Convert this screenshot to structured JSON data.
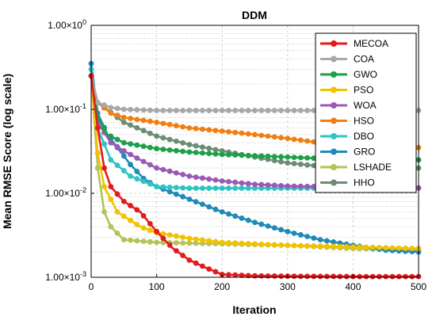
{
  "chart_data": {
    "type": "line",
    "title": "DDM",
    "xlabel": "Iteration",
    "ylabel": "Mean RMSE Score (log scale)",
    "x_ticks": [
      0,
      100,
      200,
      300,
      400,
      500
    ],
    "y_ticks": [
      {
        "value": 0.001,
        "mantissa": "1.00×10",
        "exp": "-3"
      },
      {
        "value": 0.01,
        "mantissa": "1.00×10",
        "exp": "-2"
      },
      {
        "value": 0.1,
        "mantissa": "1.00×10",
        "exp": "-1"
      },
      {
        "value": 1,
        "mantissa": "1.00×10",
        "exp": "0"
      }
    ],
    "xlim": [
      0,
      500
    ],
    "ylim": [
      0.001,
      1
    ],
    "y_scale": "log",
    "grid": true,
    "legend_position": "top-right",
    "series": [
      {
        "name": "MECOA",
        "color": "#e41a1c",
        "points": [
          [
            0,
            0.25
          ],
          [
            10,
            0.06
          ],
          [
            20,
            0.02
          ],
          [
            30,
            0.012
          ],
          [
            50,
            0.008
          ],
          [
            75,
            0.006
          ],
          [
            100,
            0.0035
          ],
          [
            125,
            0.0022
          ],
          [
            150,
            0.0016
          ],
          [
            175,
            0.0013
          ],
          [
            200,
            0.00108
          ],
          [
            250,
            0.00104
          ],
          [
            300,
            0.00103
          ],
          [
            400,
            0.00102
          ],
          [
            500,
            0.00102
          ]
        ]
      },
      {
        "name": "COA",
        "color": "#a8a8a8",
        "points": [
          [
            0,
            0.25
          ],
          [
            10,
            0.12
          ],
          [
            30,
            0.105
          ],
          [
            50,
            0.1
          ],
          [
            100,
            0.097
          ],
          [
            200,
            0.097
          ],
          [
            300,
            0.097
          ],
          [
            400,
            0.097
          ],
          [
            500,
            0.097
          ]
        ]
      },
      {
        "name": "GWO",
        "color": "#1ca04a",
        "points": [
          [
            0,
            0.25
          ],
          [
            10,
            0.08
          ],
          [
            25,
            0.05
          ],
          [
            50,
            0.04
          ],
          [
            100,
            0.034
          ],
          [
            150,
            0.031
          ],
          [
            200,
            0.029
          ],
          [
            250,
            0.028
          ],
          [
            300,
            0.027
          ],
          [
            350,
            0.026
          ],
          [
            400,
            0.025
          ],
          [
            450,
            0.025
          ],
          [
            500,
            0.025
          ]
        ]
      },
      {
        "name": "PSO",
        "color": "#f2c200",
        "points": [
          [
            0,
            0.25
          ],
          [
            10,
            0.03
          ],
          [
            20,
            0.012
          ],
          [
            40,
            0.006
          ],
          [
            75,
            0.004
          ],
          [
            100,
            0.0034
          ],
          [
            150,
            0.0029
          ],
          [
            200,
            0.0026
          ],
          [
            300,
            0.0024
          ],
          [
            400,
            0.0023
          ],
          [
            500,
            0.0022
          ]
        ]
      },
      {
        "name": "WOA",
        "color": "#9b59b6",
        "points": [
          [
            0,
            0.25
          ],
          [
            10,
            0.07
          ],
          [
            30,
            0.04
          ],
          [
            50,
            0.032
          ],
          [
            75,
            0.025
          ],
          [
            100,
            0.02
          ],
          [
            150,
            0.016
          ],
          [
            200,
            0.014
          ],
          [
            250,
            0.0128
          ],
          [
            300,
            0.0122
          ],
          [
            350,
            0.012
          ],
          [
            400,
            0.0118
          ],
          [
            500,
            0.0116
          ]
        ]
      },
      {
        "name": "HSO",
        "color": "#f07f13",
        "points": [
          [
            0,
            0.25
          ],
          [
            10,
            0.12
          ],
          [
            30,
            0.09
          ],
          [
            50,
            0.08
          ],
          [
            100,
            0.07
          ],
          [
            150,
            0.06
          ],
          [
            200,
            0.055
          ],
          [
            250,
            0.05
          ],
          [
            300,
            0.045
          ],
          [
            350,
            0.04
          ],
          [
            400,
            0.038
          ],
          [
            450,
            0.036
          ],
          [
            500,
            0.035
          ]
        ]
      },
      {
        "name": "DBO",
        "color": "#2ec4c4",
        "points": [
          [
            0,
            0.3
          ],
          [
            10,
            0.06
          ],
          [
            30,
            0.025
          ],
          [
            60,
            0.016
          ],
          [
            100,
            0.012
          ],
          [
            150,
            0.0115
          ],
          [
            200,
            0.0115
          ],
          [
            300,
            0.0115
          ],
          [
            400,
            0.0115
          ],
          [
            500,
            0.0115
          ]
        ]
      },
      {
        "name": "GRO",
        "color": "#1f8ab8",
        "points": [
          [
            0,
            0.35
          ],
          [
            10,
            0.09
          ],
          [
            25,
            0.05
          ],
          [
            40,
            0.035
          ],
          [
            60,
            0.022
          ],
          [
            80,
            0.015
          ],
          [
            100,
            0.012
          ],
          [
            150,
            0.0085
          ],
          [
            200,
            0.006
          ],
          [
            250,
            0.0045
          ],
          [
            300,
            0.0035
          ],
          [
            350,
            0.0028
          ],
          [
            400,
            0.0024
          ],
          [
            450,
            0.0021
          ],
          [
            500,
            0.002
          ]
        ]
      },
      {
        "name": "LSHADE",
        "color": "#b5c256",
        "points": [
          [
            0,
            0.25
          ],
          [
            10,
            0.02
          ],
          [
            20,
            0.006
          ],
          [
            30,
            0.004
          ],
          [
            50,
            0.0028
          ],
          [
            100,
            0.0026
          ],
          [
            200,
            0.0025
          ],
          [
            300,
            0.0024
          ],
          [
            400,
            0.0022
          ],
          [
            500,
            0.0021
          ]
        ]
      },
      {
        "name": "HHO",
        "color": "#6a8d73",
        "points": [
          [
            0,
            0.25
          ],
          [
            10,
            0.12
          ],
          [
            50,
            0.07
          ],
          [
            100,
            0.048
          ],
          [
            150,
            0.038
          ],
          [
            200,
            0.032
          ],
          [
            250,
            0.027
          ],
          [
            300,
            0.023
          ],
          [
            350,
            0.021
          ],
          [
            400,
            0.02
          ],
          [
            500,
            0.02
          ]
        ]
      }
    ]
  }
}
